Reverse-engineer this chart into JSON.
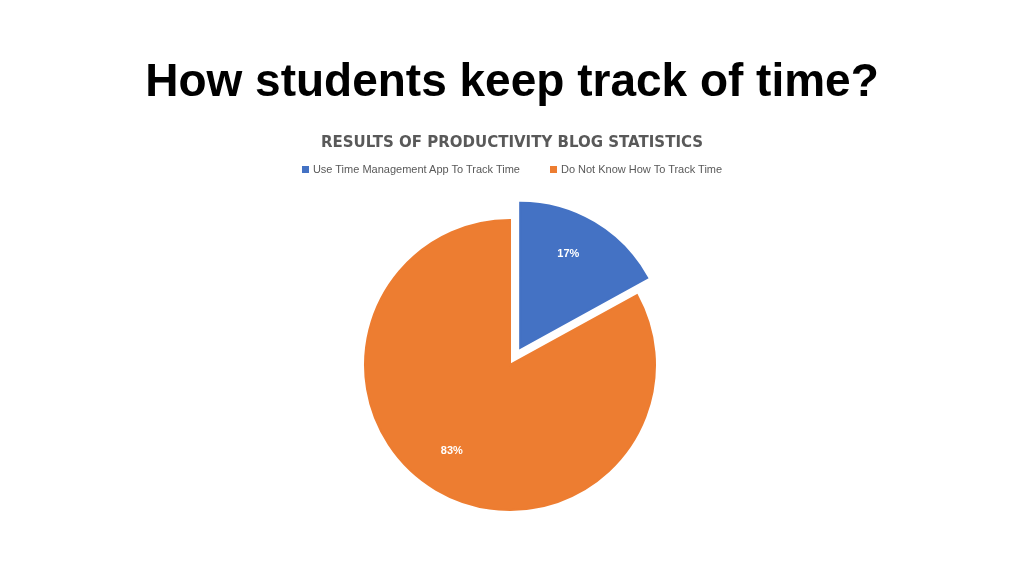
{
  "chart_data": {
    "type": "pie",
    "title": "How students keep track of time?",
    "subtitle": "RESULTS OF PRODUCTIVITY BLOG STATISTICS",
    "categories": [
      "Use Time Management App To Track Time",
      "Do Not Know How To Track Time"
    ],
    "values": [
      17,
      83
    ],
    "colors": [
      "#4472c4",
      "#ed7d31"
    ],
    "value_labels": [
      "17%",
      "83%"
    ],
    "legend": "top"
  }
}
